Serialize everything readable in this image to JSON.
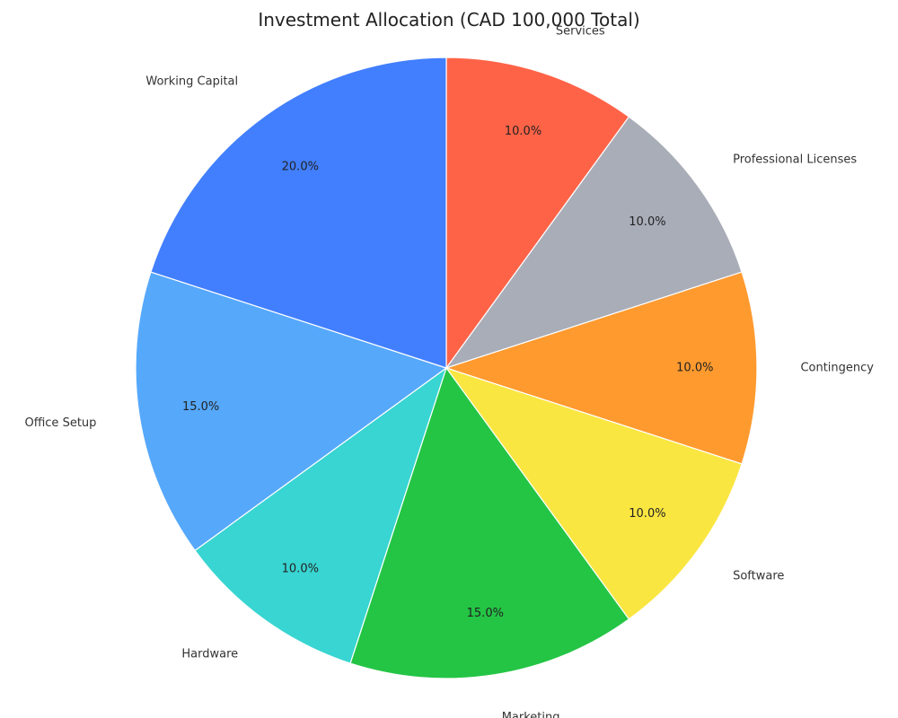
{
  "chart_data": {
    "type": "pie",
    "title": "Investment Allocation (CAD 100,000 Total)",
    "start_angle_deg": 90,
    "direction": "clockwise",
    "slices": [
      {
        "label": "Services",
        "value": 10.0,
        "display": "10.0%",
        "color": "#FF6347"
      },
      {
        "label": "Professional Licenses",
        "value": 10.0,
        "display": "10.0%",
        "color": "#A9ADB8"
      },
      {
        "label": "Contingency",
        "value": 10.0,
        "display": "10.0%",
        "color": "#FF9A2F"
      },
      {
        "label": "Software",
        "value": 10.0,
        "display": "10.0%",
        "color": "#FAE641"
      },
      {
        "label": "Marketing",
        "value": 15.0,
        "display": "15.0%",
        "color": "#24C545"
      },
      {
        "label": "Hardware",
        "value": 10.0,
        "display": "10.0%",
        "color": "#38D5D2"
      },
      {
        "label": "Office Setup",
        "value": 15.0,
        "display": "15.0%",
        "color": "#56A8FB"
      },
      {
        "label": "Working Capital",
        "value": 20.0,
        "display": "20.0%",
        "color": "#427FFE"
      }
    ]
  }
}
